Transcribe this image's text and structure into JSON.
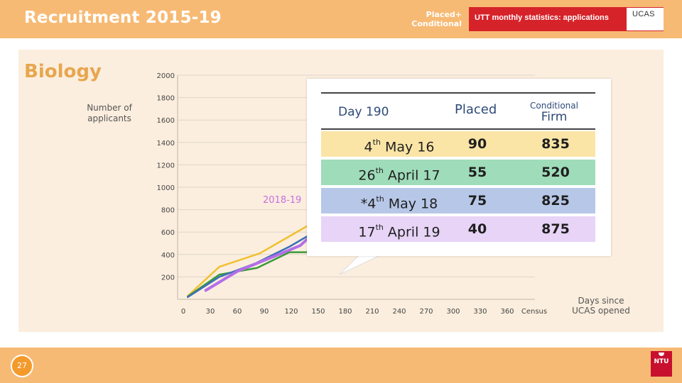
{
  "header": {
    "title": "Recruitment 2015-19",
    "placed_line1": "Placed+",
    "placed_line2": "Conditional",
    "banner_text": "UTT monthly statistics: applications",
    "ucas_logo": "UCAS"
  },
  "subject": "Biology",
  "footer": {
    "page_number": "27",
    "logo": "NTU"
  },
  "chart_data": {
    "type": "line",
    "ylabel": "Number of applicants",
    "xlabel": "Days since UCAS opened",
    "x_ticks": [
      "0",
      "30",
      "60",
      "90",
      "120",
      "150",
      "180",
      "210",
      "240",
      "270",
      "300",
      "330",
      "360",
      "Census"
    ],
    "y_ticks": [
      2000,
      1800,
      1600,
      1400,
      1200,
      1000,
      800,
      600,
      400,
      200
    ],
    "ylim": [
      0,
      2000
    ],
    "grid": true,
    "annotation": "2018-19",
    "series": [
      {
        "color": "#f0c030",
        "points": [
          [
            5,
            30
          ],
          [
            40,
            290
          ],
          [
            85,
            410
          ],
          [
            165,
            780
          ]
        ]
      },
      {
        "color": "#3a9a3a",
        "points": [
          [
            5,
            25
          ],
          [
            40,
            220
          ],
          [
            82,
            280
          ],
          [
            118,
            420
          ],
          [
            160,
            420
          ]
        ]
      },
      {
        "color": "#3c6fb8",
        "points": [
          [
            5,
            20
          ],
          [
            40,
            200
          ],
          [
            80,
            320
          ],
          [
            118,
            470
          ],
          [
            150,
            620
          ]
        ]
      },
      {
        "color": "#b46ee8",
        "points": [
          [
            25,
            80
          ],
          [
            60,
            250
          ],
          [
            100,
            380
          ],
          [
            130,
            480
          ],
          [
            165,
            740
          ]
        ]
      }
    ]
  },
  "callout_table": {
    "header_day": "Day 190",
    "header_placed": "Placed",
    "header_conditional": "Conditional",
    "header_firm": "Firm",
    "rows": [
      {
        "day_num": "4",
        "day_sup": "th",
        "day_rest": " May 16",
        "placed": "90",
        "firm": "835",
        "color": "#fbe5a6"
      },
      {
        "day_num": "26",
        "day_sup": "th",
        "day_rest": " April 17",
        "placed": "55",
        "firm": "520",
        "color": "#9fdcb9"
      },
      {
        "day_num": "*4",
        "day_sup": "th",
        "day_rest": " May 18",
        "placed": "75",
        "firm": "825",
        "color": "#b7c7e8"
      },
      {
        "day_num": "17",
        "day_sup": "th",
        "day_rest": " April 19",
        "placed": "40",
        "firm": "875",
        "color": "#e7d4f7"
      }
    ]
  }
}
